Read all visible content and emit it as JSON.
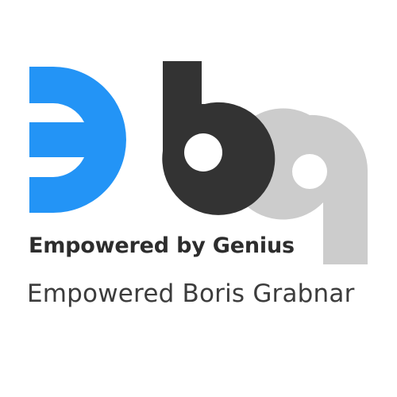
{
  "logo": {
    "colors": {
      "blue": "#2394f6",
      "dark": "#333333",
      "light_gray": "#cccccc"
    }
  },
  "tagline": {
    "text": "Empowered by Genius",
    "color": "#2d2d2d"
  },
  "subtitle": {
    "text": "Empowered Boris Grabnar",
    "color": "#3c3c3c"
  }
}
